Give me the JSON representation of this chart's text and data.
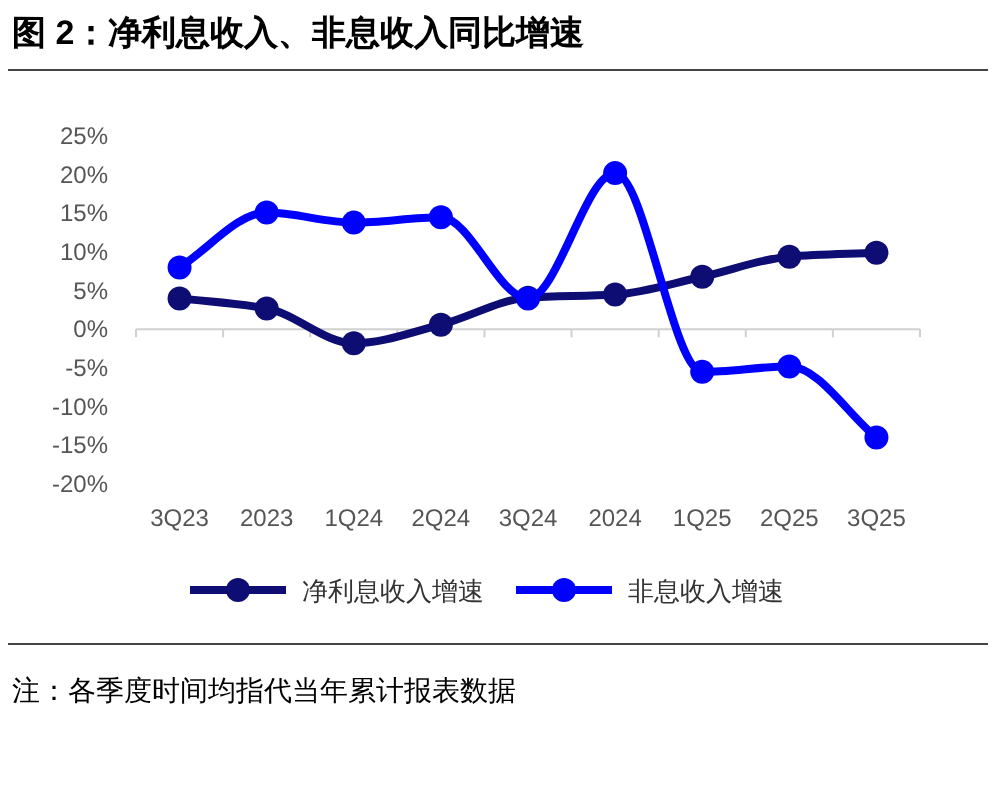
{
  "chart_data": {
    "type": "line",
    "title": "图 2：净利息收入、非息收入同比增速",
    "categories": [
      "3Q23",
      "2023",
      "1Q24",
      "2Q24",
      "3Q24",
      "2024",
      "1Q25",
      "2Q25",
      "3Q25"
    ],
    "series": [
      {
        "name": "净利息收入增速",
        "color": "#0d0d73",
        "values": [
          4.0,
          2.7,
          -1.8,
          0.6,
          4.1,
          4.5,
          6.8,
          9.4,
          9.9
        ]
      },
      {
        "name": "非息收入增速",
        "color": "#0000ff",
        "values": [
          8.0,
          15.1,
          13.8,
          14.5,
          4.0,
          20.2,
          -5.5,
          -4.8,
          -14.0
        ]
      }
    ],
    "ylim": [
      -20,
      25
    ],
    "yticks": [
      {
        "value": 25,
        "label": "25%"
      },
      {
        "value": 20,
        "label": "20%"
      },
      {
        "value": 15,
        "label": "15%"
      },
      {
        "value": 10,
        "label": "10%"
      },
      {
        "value": 5,
        "label": "5%"
      },
      {
        "value": 0,
        "label": "0%"
      },
      {
        "value": -5,
        "label": "-5%"
      },
      {
        "value": -10,
        "label": "-10%"
      },
      {
        "value": -15,
        "label": "-15%"
      },
      {
        "value": -20,
        "label": "-20%"
      }
    ],
    "marker": "circle",
    "legend": "bottom",
    "annotations": [
      "注：各季度时间均指代当年累计报表数据"
    ]
  }
}
